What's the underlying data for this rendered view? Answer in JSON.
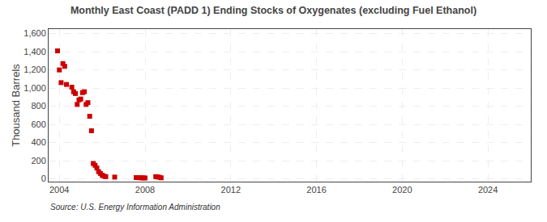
{
  "chart_data": {
    "type": "scatter",
    "title": "Monthly East Coast (PADD 1) Ending Stocks of Oxygenates (excluding Fuel Ethanol)",
    "ylabel": "Thousand Barrels",
    "annotations": [
      "Source: U.S. Energy Information Administration"
    ],
    "x": [
      2003.917,
      2004.0,
      2004.083,
      2004.167,
      2004.25,
      2004.333,
      2004.583,
      2004.667,
      2004.75,
      2004.833,
      2004.917,
      2005.0,
      2005.083,
      2005.167,
      2005.25,
      2005.333,
      2005.417,
      2005.5,
      2005.583,
      2005.667,
      2005.75,
      2005.833,
      2005.917,
      2006.0,
      2006.083,
      2006.167,
      2006.583,
      2007.583,
      2007.667,
      2007.75,
      2007.833,
      2007.917,
      2008.0,
      2008.5,
      2008.583,
      2008.667,
      2008.75
    ],
    "values": [
      1410,
      1200,
      1060,
      1270,
      1240,
      1040,
      1010,
      960,
      940,
      820,
      870,
      880,
      950,
      960,
      820,
      840,
      690,
      530,
      170,
      150,
      120,
      80,
      60,
      40,
      30,
      25,
      20,
      15,
      14,
      13,
      12,
      11,
      10,
      25,
      22,
      18,
      12
    ],
    "color": "#cc0000",
    "marker": "square",
    "xlim": [
      2003.5,
      2026.0
    ],
    "xticks": [
      2004,
      2008,
      2012,
      2016,
      2020,
      2024
    ],
    "ylim": [
      -30,
      1650
    ],
    "yticks": [
      0,
      200,
      400,
      600,
      800,
      {
        "value": 1000,
        "label": "1,000"
      },
      {
        "value": 1200,
        "label": "1,200"
      },
      {
        "value": 1400,
        "label": "1,400"
      },
      {
        "value": 1600,
        "label": "1,600"
      }
    ],
    "grid": true
  }
}
